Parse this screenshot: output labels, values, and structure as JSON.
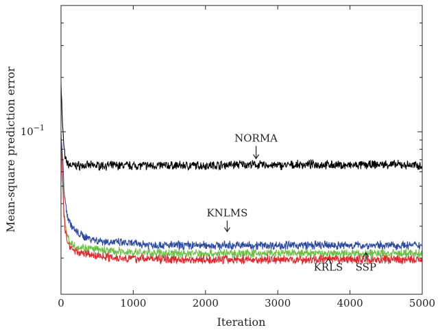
{
  "chart_data": {
    "type": "line",
    "title": "",
    "xlabel": "Iteration",
    "ylabel": "Mean-square prediction error",
    "xlim": [
      0,
      5000
    ],
    "ylim": [
      0.0126,
      0.5
    ],
    "yscale": "log",
    "grid": false,
    "legend": "none (series labeled by arrow annotations)",
    "x_ticks": [
      {
        "value": 0,
        "label": "0"
      },
      {
        "value": 1000,
        "label": "1000"
      },
      {
        "value": 2000,
        "label": "2000"
      },
      {
        "value": 3000,
        "label": "3000"
      },
      {
        "value": 4000,
        "label": "4000"
      },
      {
        "value": 5000,
        "label": "5000"
      }
    ],
    "y_ticks": [
      {
        "value": 0.1,
        "base": "10",
        "exponent": "−1"
      }
    ],
    "series": [
      {
        "name": "NORMA",
        "color": "#000000",
        "x": [
          0,
          20,
          40,
          60,
          100,
          150,
          300,
          600,
          1000,
          1500,
          2000,
          2500,
          3000,
          3500,
          4000,
          4500,
          5000
        ],
        "values": [
          0.19,
          0.11,
          0.083,
          0.07,
          0.066,
          0.065,
          0.065,
          0.065,
          0.065,
          0.065,
          0.065,
          0.066,
          0.065,
          0.066,
          0.065,
          0.066,
          0.065
        ]
      },
      {
        "name": "KNLMS",
        "color": "#2b4aa0",
        "x": [
          0,
          20,
          40,
          60,
          100,
          150,
          200,
          300,
          500,
          700,
          1000,
          1500,
          2000,
          2500,
          3000,
          3500,
          4000,
          4500,
          5000
        ],
        "values": [
          0.095,
          0.075,
          0.05,
          0.04,
          0.033,
          0.03,
          0.028,
          0.0265,
          0.025,
          0.0245,
          0.024,
          0.0235,
          0.0235,
          0.0235,
          0.0235,
          0.0235,
          0.0235,
          0.0235,
          0.0235
        ]
      },
      {
        "name": "SSP",
        "color": "#6cbf45",
        "x": [
          0,
          20,
          40,
          60,
          100,
          150,
          200,
          300,
          500,
          700,
          1000,
          1500,
          2000,
          2500,
          3000,
          3500,
          4000,
          4500,
          5000
        ],
        "values": [
          0.09,
          0.06,
          0.038,
          0.03,
          0.0255,
          0.024,
          0.0232,
          0.0228,
          0.0222,
          0.0218,
          0.0215,
          0.0212,
          0.0212,
          0.0212,
          0.0212,
          0.0212,
          0.0212,
          0.0212,
          0.0212
        ]
      },
      {
        "name": "KRLS",
        "color": "#e3262b",
        "x": [
          0,
          20,
          40,
          60,
          100,
          150,
          200,
          300,
          500,
          700,
          1000,
          1500,
          2000,
          2500,
          3000,
          3500,
          4000,
          4500,
          5000
        ],
        "values": [
          0.088,
          0.055,
          0.035,
          0.028,
          0.024,
          0.0226,
          0.0218,
          0.0212,
          0.0206,
          0.0202,
          0.0199,
          0.0197,
          0.0196,
          0.0196,
          0.0196,
          0.0196,
          0.0196,
          0.0196,
          0.0196
        ]
      }
    ],
    "annotations": [
      {
        "text": "NORMA",
        "x": 2700,
        "y": 0.088,
        "arrow_to_y": 0.071
      },
      {
        "text": "KNLMS",
        "x": 2300,
        "y": 0.034,
        "arrow_to_y": 0.028
      },
      {
        "text": "KRLS",
        "x": 3700,
        "y": 0.017,
        "arrow_to_y": 0.0198
      },
      {
        "text": "SSP",
        "x": 4220,
        "y": 0.017,
        "arrow_to_y": 0.0214
      }
    ]
  }
}
